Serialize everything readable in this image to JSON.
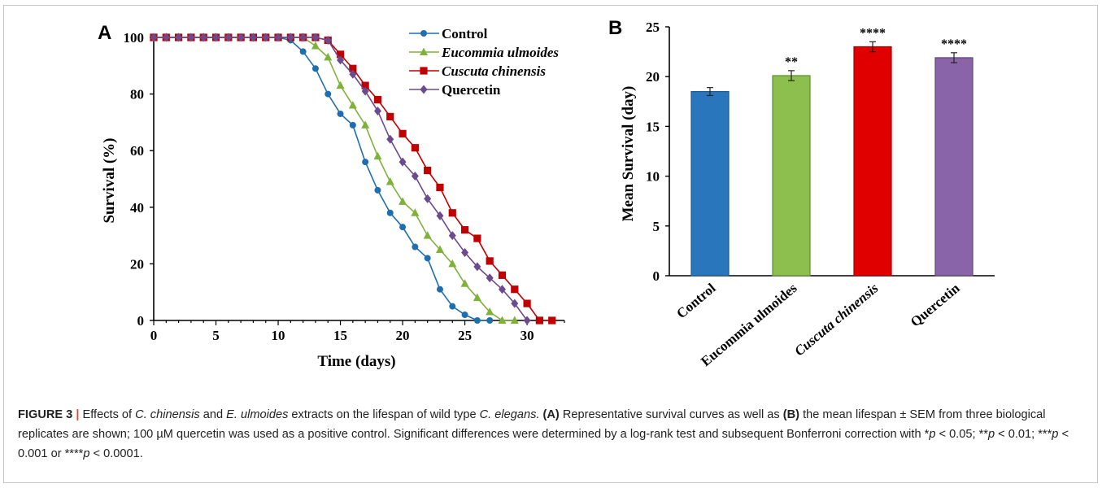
{
  "figure": {
    "caption": {
      "label": "FIGURE 3",
      "separator": "|",
      "segments": [
        {
          "text": " Effects of ",
          "style": "normal"
        },
        {
          "text": "C. chinensis",
          "style": "italic"
        },
        {
          "text": " and ",
          "style": "normal"
        },
        {
          "text": "E. ulmoides",
          "style": "italic"
        },
        {
          "text": " extracts on the lifespan of wild type ",
          "style": "normal"
        },
        {
          "text": "C. elegans.",
          "style": "italic"
        },
        {
          "text": " ",
          "style": "normal"
        },
        {
          "text": "(A)",
          "style": "bold"
        },
        {
          "text": " Representative survival curves as well as ",
          "style": "normal"
        },
        {
          "text": "(B)",
          "style": "bold"
        },
        {
          "text": " the mean lifespan ± SEM from three biological replicates are shown; 100 µM quercetin was used as a positive control. Significant differences were determined by a log-rank test and subsequent Bonferroni correction with *",
          "style": "normal"
        },
        {
          "text": "p",
          "style": "italic"
        },
        {
          "text": " < 0.05; **",
          "style": "normal"
        },
        {
          "text": "p",
          "style": "italic"
        },
        {
          "text": " < 0.01; ***",
          "style": "normal"
        },
        {
          "text": "p",
          "style": "italic"
        },
        {
          "text": " < 0.001 or ****",
          "style": "normal"
        },
        {
          "text": "p",
          "style": "italic"
        },
        {
          "text": " < 0.0001.",
          "style": "normal"
        }
      ]
    }
  },
  "chart_data": [
    {
      "panel": "A",
      "type": "line",
      "title": "",
      "xlabel": "Time (days)",
      "ylabel": "Survival (%)",
      "xlim": [
        0,
        33
      ],
      "ylim": [
        0,
        100
      ],
      "xticks": [
        0,
        5,
        10,
        15,
        20,
        25,
        30
      ],
      "yticks": [
        0,
        20,
        40,
        60,
        80,
        100
      ],
      "grid": false,
      "legend": "top-center",
      "series": [
        {
          "name": "Control",
          "italic": false,
          "color": "#1f6fb0",
          "marker": "circle",
          "x": [
            0,
            1,
            2,
            3,
            4,
            5,
            6,
            7,
            8,
            9,
            10,
            11,
            12,
            13,
            14,
            15,
            16,
            17,
            18,
            19,
            20,
            21,
            22,
            23,
            24,
            25,
            26,
            27
          ],
          "y": [
            100,
            100,
            100,
            100,
            100,
            100,
            100,
            100,
            100,
            100,
            100,
            99,
            95,
            89,
            80,
            73,
            69,
            56,
            46,
            38,
            33,
            26,
            22,
            11,
            5,
            2,
            0,
            0
          ]
        },
        {
          "name": "Eucommia ulmoides",
          "italic": true,
          "color": "#7fb23a",
          "marker": "triangle",
          "x": [
            0,
            1,
            2,
            3,
            4,
            5,
            6,
            7,
            8,
            9,
            10,
            11,
            12,
            13,
            14,
            15,
            16,
            17,
            18,
            19,
            20,
            21,
            22,
            23,
            24,
            25,
            26,
            27,
            28,
            29
          ],
          "y": [
            100,
            100,
            100,
            100,
            100,
            100,
            100,
            100,
            100,
            100,
            100,
            100,
            100,
            97,
            93,
            83,
            76,
            69,
            58,
            49,
            42,
            38,
            30,
            25,
            20,
            13,
            8,
            3,
            0,
            0
          ]
        },
        {
          "name": "Cuscuta chinensis",
          "italic": true,
          "color": "#c00000",
          "marker": "square",
          "x": [
            0,
            1,
            2,
            3,
            4,
            5,
            6,
            7,
            8,
            9,
            10,
            11,
            12,
            13,
            14,
            15,
            16,
            17,
            18,
            19,
            20,
            21,
            22,
            23,
            24,
            25,
            26,
            27,
            28,
            29,
            30,
            31,
            32
          ],
          "y": [
            100,
            100,
            100,
            100,
            100,
            100,
            100,
            100,
            100,
            100,
            100,
            100,
            100,
            100,
            99,
            94,
            89,
            83,
            78,
            72,
            66,
            61,
            53,
            47,
            38,
            32,
            29,
            21,
            16,
            11,
            6,
            0,
            0
          ]
        },
        {
          "name": "Quercetin",
          "italic": false,
          "color": "#6b4a8e",
          "marker": "diamond",
          "x": [
            0,
            1,
            2,
            3,
            4,
            5,
            6,
            7,
            8,
            9,
            10,
            11,
            12,
            13,
            14,
            15,
            16,
            17,
            18,
            19,
            20,
            21,
            22,
            23,
            24,
            25,
            26,
            27,
            28,
            29,
            30
          ],
          "y": [
            100,
            100,
            100,
            100,
            100,
            100,
            100,
            100,
            100,
            100,
            100,
            100,
            100,
            100,
            99,
            92,
            87,
            81,
            74,
            64,
            56,
            51,
            43,
            37,
            30,
            24,
            19,
            15,
            11,
            6,
            0
          ]
        }
      ]
    },
    {
      "panel": "B",
      "type": "bar",
      "title": "",
      "xlabel": "",
      "ylabel": "Mean Survival (day)",
      "ylim": [
        0,
        25
      ],
      "yticks": [
        0,
        5,
        10,
        15,
        20,
        25
      ],
      "grid": false,
      "categories": [
        "Control",
        "Eucommia ulmoides",
        "Cuscuta chinensis",
        "Quercetin"
      ],
      "category_italic": [
        false,
        false,
        true,
        false
      ],
      "values": [
        18.5,
        20.1,
        23.0,
        21.9
      ],
      "errors": [
        0.4,
        0.5,
        0.5,
        0.5
      ],
      "significance": [
        "",
        "**",
        "****",
        "****"
      ],
      "colors": [
        "#2a76bc",
        "#8dbf4f",
        "#e00000",
        "#8a64a8"
      ],
      "edge_colors": [
        "#1a5a92",
        "#5f8f2c",
        "#a00000",
        "#5e4577"
      ]
    }
  ]
}
